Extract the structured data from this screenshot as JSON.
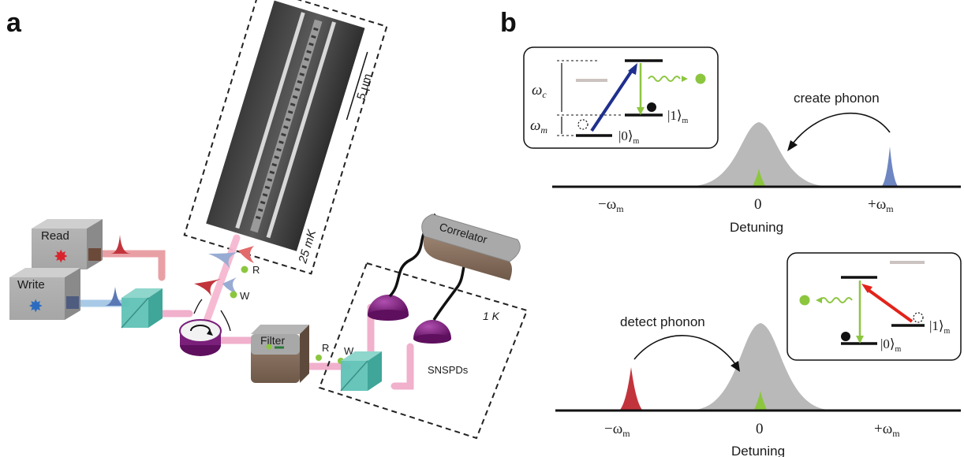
{
  "panel_a": {
    "letter": "a",
    "boxes": {
      "read": "Read",
      "write": "Write",
      "filter": "Filter",
      "correlator": "Correlator"
    },
    "scale_bar": "5 µm",
    "temp_device": "25 mK",
    "temp_detectors": "1 K",
    "pulse_label_r": "R",
    "pulse_label_w": "W",
    "filter_label_r": "R",
    "filter_label_w": "W",
    "detectors": "SNSPDs"
  },
  "panel_b": {
    "letter": "b",
    "top": {
      "arrow_label": "create phonon",
      "x_ticks": [
        "−ω",
        "0",
        "+ω"
      ],
      "tick_sub": "m",
      "xlabel": "Detuning",
      "inset": {
        "omega_c": "ω",
        "omega_c_sub": "c",
        "omega_m": "ω",
        "omega_m_sub": "m",
        "ket1": "|1⟩",
        "ket1_sub": "m",
        "ket0": "|0⟩",
        "ket0_sub": "m"
      }
    },
    "bottom": {
      "arrow_label": "detect phonon",
      "x_ticks": [
        "−ω",
        "0",
        "+ω"
      ],
      "tick_sub": "m",
      "xlabel": "Detuning",
      "inset": {
        "ket1": "|1⟩",
        "ket1_sub": "m",
        "ket0": "|0⟩",
        "ket0_sub": "m"
      }
    }
  },
  "colors": {
    "read_red": "#c2343c",
    "write_blue": "#5a78b4",
    "phonon_green": "#8cc63f",
    "cube_teal": "#5fc2b6",
    "detector_purple": "#7a1f7a",
    "cavity_gray": "#b9b9b9",
    "blue_arrow": "#1f2f8f",
    "red_arrow": "#e2231a"
  }
}
